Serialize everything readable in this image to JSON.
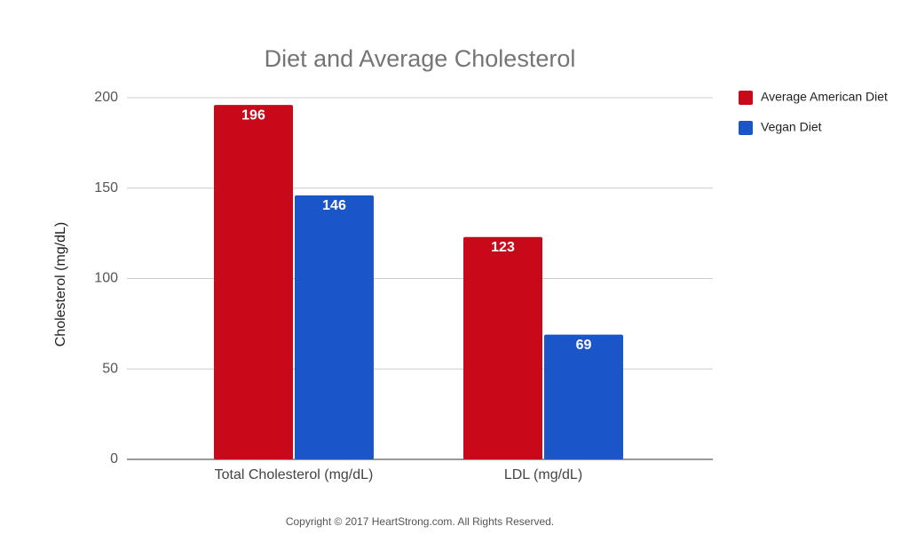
{
  "chart_data": {
    "type": "bar",
    "title": "Diet and Average Cholesterol",
    "y_label": "Cholesterol (mg/dL)",
    "categories": [
      "Total Cholesterol (mg/dL)",
      "LDL (mg/dL)"
    ],
    "series": [
      {
        "name": "Average American Diet",
        "color": "#c8091a",
        "values": [
          196,
          123
        ]
      },
      {
        "name": "Vegan Diet",
        "color": "#1b56c8",
        "values": [
          146,
          69
        ]
      }
    ],
    "ylim": [
      0,
      200
    ],
    "yticks": [
      0,
      50,
      100,
      150,
      200
    ],
    "grid": true,
    "legend": "right",
    "footer": "Copyright © 2017 HeartStrong.com. All Rights Reserved."
  }
}
